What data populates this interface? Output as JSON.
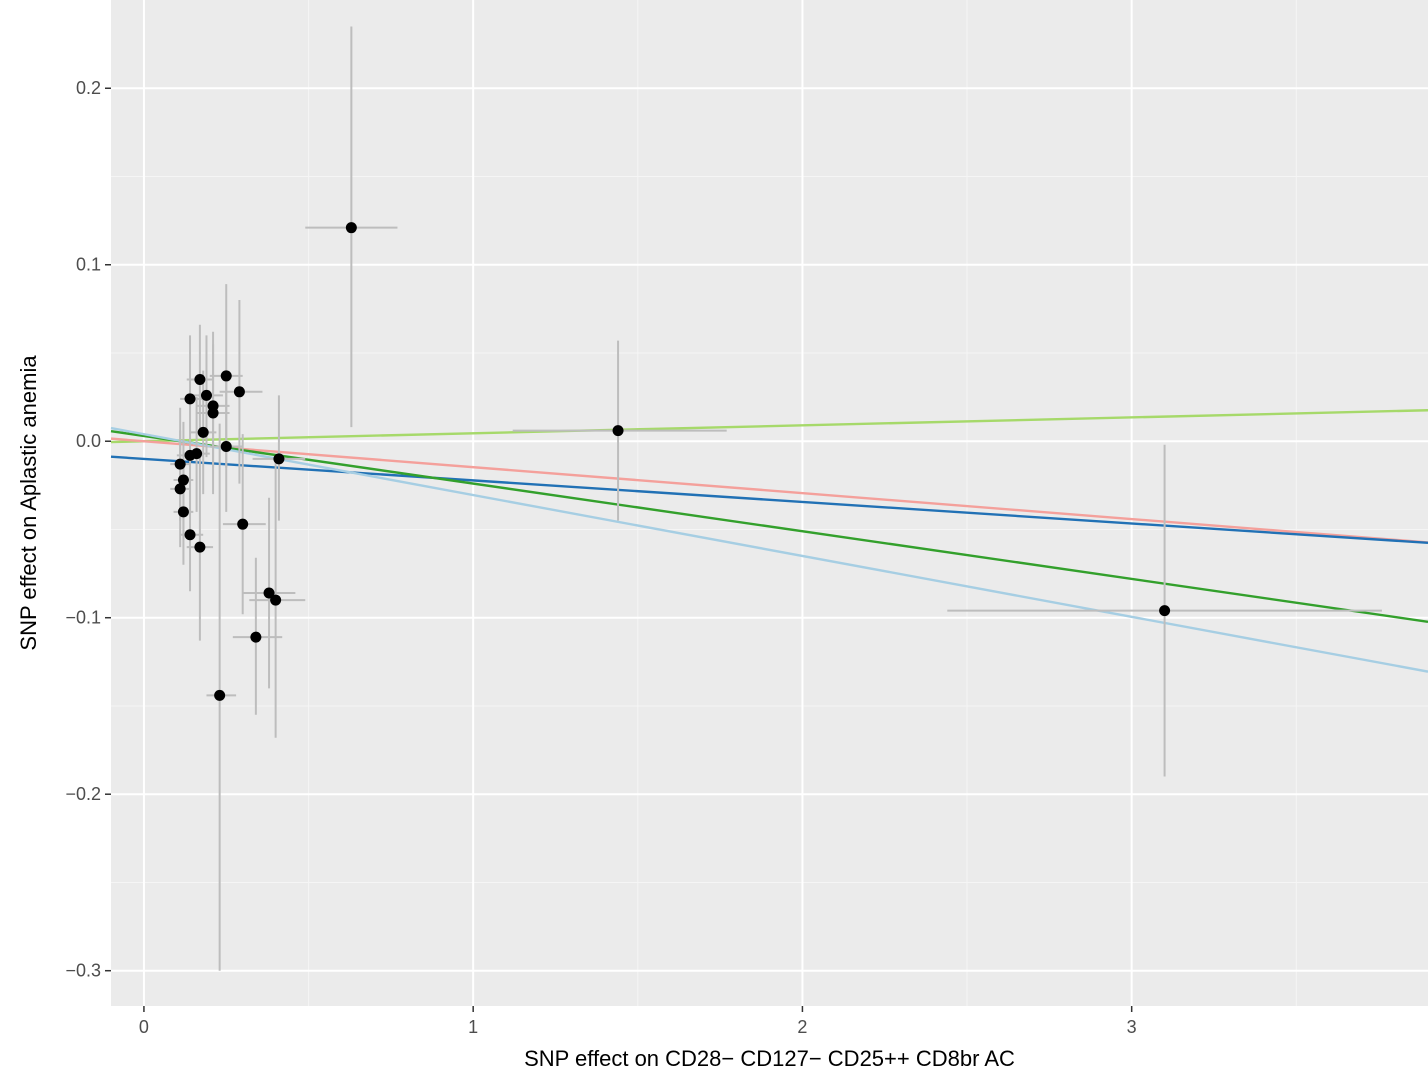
{
  "chart_data": {
    "type": "scatter",
    "title": "",
    "xlabel": "SNP effect on CD28− CD127− CD25++ CD8br AC",
    "ylabel": "SNP effect on Aplastic anemia",
    "xlim": [
      -0.1,
      3.9
    ],
    "ylim": [
      -0.32,
      0.25
    ],
    "x_ticks": [
      0,
      1,
      2,
      3
    ],
    "x_tick_labels": [
      "0",
      "1",
      "2",
      "3"
    ],
    "y_ticks": [
      -0.3,
      -0.2,
      -0.1,
      0.0,
      0.1,
      0.2
    ],
    "y_tick_labels": [
      "−0.3",
      "−0.2",
      "−0.1",
      "0.0",
      "0.1",
      "0.2"
    ],
    "grid": true,
    "background": "#ebebeb",
    "colors": {
      "point": "#000000",
      "errorbar": "#bdbdbd",
      "grid_major": "#ffffff",
      "grid_minor": "#f5f5f5"
    },
    "points": [
      {
        "x": 0.63,
        "y": 0.121,
        "x_lo": 0.49,
        "x_hi": 0.77,
        "y_lo": 0.008,
        "y_hi": 0.235
      },
      {
        "x": 1.44,
        "y": 0.006,
        "x_lo": 1.12,
        "x_hi": 1.77,
        "y_lo": -0.045,
        "y_hi": 0.057
      },
      {
        "x": 3.1,
        "y": -0.096,
        "x_lo": 2.44,
        "x_hi": 3.76,
        "y_lo": -0.19,
        "y_hi": -0.002
      },
      {
        "x": 0.23,
        "y": -0.144,
        "x_lo": 0.19,
        "x_hi": 0.28,
        "y_lo": -0.3,
        "y_hi": 0.01
      },
      {
        "x": 0.25,
        "y": 0.037,
        "x_lo": 0.2,
        "x_hi": 0.3,
        "y_lo": -0.015,
        "y_hi": 0.089
      },
      {
        "x": 0.29,
        "y": 0.028,
        "x_lo": 0.23,
        "x_hi": 0.36,
        "y_lo": -0.024,
        "y_hi": 0.08
      },
      {
        "x": 0.17,
        "y": 0.035,
        "x_lo": 0.13,
        "x_hi": 0.21,
        "y_lo": 0.004,
        "y_hi": 0.066
      },
      {
        "x": 0.19,
        "y": 0.026,
        "x_lo": 0.15,
        "x_hi": 0.24,
        "y_lo": -0.009,
        "y_hi": 0.06
      },
      {
        "x": 0.21,
        "y": 0.02,
        "x_lo": 0.16,
        "x_hi": 0.26,
        "y_lo": -0.015,
        "y_hi": 0.055
      },
      {
        "x": 0.21,
        "y": 0.016,
        "x_lo": 0.16,
        "x_hi": 0.26,
        "y_lo": -0.03,
        "y_hi": 0.062
      },
      {
        "x": 0.14,
        "y": 0.024,
        "x_lo": 0.11,
        "x_hi": 0.18,
        "y_lo": -0.01,
        "y_hi": 0.06
      },
      {
        "x": 0.18,
        "y": 0.005,
        "x_lo": 0.14,
        "x_hi": 0.22,
        "y_lo": -0.03,
        "y_hi": 0.04
      },
      {
        "x": 0.25,
        "y": -0.003,
        "x_lo": 0.2,
        "x_hi": 0.3,
        "y_lo": -0.04,
        "y_hi": 0.034
      },
      {
        "x": 0.14,
        "y": -0.008,
        "x_lo": 0.1,
        "x_hi": 0.18,
        "y_lo": -0.04,
        "y_hi": 0.025
      },
      {
        "x": 0.16,
        "y": -0.007,
        "x_lo": 0.12,
        "x_hi": 0.2,
        "y_lo": -0.04,
        "y_hi": 0.025
      },
      {
        "x": 0.41,
        "y": -0.01,
        "x_lo": 0.33,
        "x_hi": 0.49,
        "y_lo": -0.045,
        "y_hi": 0.026
      },
      {
        "x": 0.11,
        "y": -0.013,
        "x_lo": 0.08,
        "x_hi": 0.14,
        "y_lo": -0.045,
        "y_hi": 0.019
      },
      {
        "x": 0.12,
        "y": -0.022,
        "x_lo": 0.09,
        "x_hi": 0.15,
        "y_lo": -0.055,
        "y_hi": 0.011
      },
      {
        "x": 0.11,
        "y": -0.027,
        "x_lo": 0.08,
        "x_hi": 0.14,
        "y_lo": -0.06,
        "y_hi": 0.006
      },
      {
        "x": 0.12,
        "y": -0.04,
        "x_lo": 0.09,
        "x_hi": 0.15,
        "y_lo": -0.07,
        "y_hi": -0.01
      },
      {
        "x": 0.14,
        "y": -0.053,
        "x_lo": 0.11,
        "x_hi": 0.18,
        "y_lo": -0.085,
        "y_hi": -0.02
      },
      {
        "x": 0.17,
        "y": -0.06,
        "x_lo": 0.13,
        "x_hi": 0.21,
        "y_lo": -0.113,
        "y_hi": -0.006
      },
      {
        "x": 0.3,
        "y": -0.047,
        "x_lo": 0.24,
        "x_hi": 0.37,
        "y_lo": -0.098,
        "y_hi": 0.004
      },
      {
        "x": 0.38,
        "y": -0.086,
        "x_lo": 0.3,
        "x_hi": 0.46,
        "y_lo": -0.14,
        "y_hi": -0.032
      },
      {
        "x": 0.4,
        "y": -0.09,
        "x_lo": 0.32,
        "x_hi": 0.49,
        "y_lo": -0.168,
        "y_hi": -0.012
      },
      {
        "x": 0.34,
        "y": -0.111,
        "x_lo": 0.27,
        "x_hi": 0.42,
        "y_lo": -0.155,
        "y_hi": -0.066
      }
    ],
    "lines": [
      {
        "color": "#a6d96a",
        "intercept": 0.0,
        "slope": 0.0045
      },
      {
        "color": "#f4a09b",
        "intercept": 0.0,
        "slope": -0.0147
      },
      {
        "color": "#2171b5",
        "intercept": -0.01,
        "slope": -0.0122
      },
      {
        "color": "#33a02c",
        "intercept": 0.003,
        "slope": -0.027
      },
      {
        "color": "#a6cee3",
        "intercept": 0.004,
        "slope": -0.0345
      }
    ]
  }
}
